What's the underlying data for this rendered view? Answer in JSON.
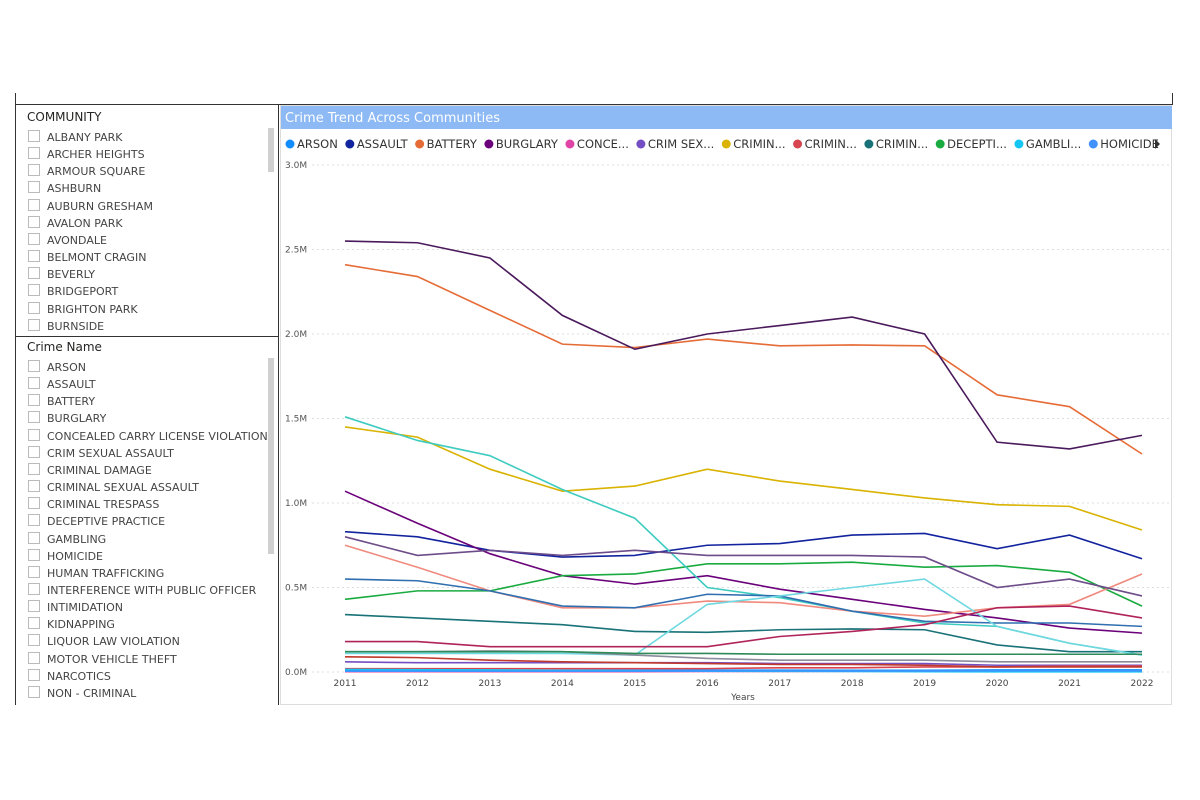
{
  "slicers": [
    {
      "title": "COMMUNITY",
      "items": [
        "ALBANY PARK",
        "ARCHER HEIGHTS",
        "ARMOUR SQUARE",
        "ASHBURN",
        "AUBURN GRESHAM",
        "AVALON PARK",
        "AVONDALE",
        "BELMONT CRAGIN",
        "BEVERLY",
        "BRIDGEPORT",
        "BRIGHTON PARK",
        "BURNSIDE"
      ]
    },
    {
      "title": "Crime Name",
      "items": [
        "ARSON",
        "ASSAULT",
        "BATTERY",
        "BURGLARY",
        "CONCEALED CARRY LICENSE VIOLATION",
        "CRIM SEXUAL ASSAULT",
        "CRIMINAL DAMAGE",
        "CRIMINAL SEXUAL ASSAULT",
        "CRIMINAL TRESPASS",
        "DECEPTIVE PRACTICE",
        "GAMBLING",
        "HOMICIDE",
        "HUMAN TRAFFICKING",
        "INTERFERENCE WITH PUBLIC OFFICER",
        "INTIMIDATION",
        "KIDNAPPING",
        "LIQUOR LAW VIOLATION",
        "MOTOR VEHICLE THEFT",
        "NARCOTICS",
        "NON - CRIMINAL"
      ]
    }
  ],
  "chart_data": {
    "type": "line",
    "title": "Crime Trend Across Communities",
    "xlabel": "Years",
    "x": [
      2011,
      2012,
      2013,
      2014,
      2015,
      2016,
      2017,
      2018,
      2019,
      2020,
      2021,
      2022
    ],
    "xlim": [
      2011,
      2022
    ],
    "xticks": [
      2011,
      2012,
      2013,
      2014,
      2015,
      2016,
      2017,
      2018,
      2019,
      2020,
      2021,
      2022
    ],
    "ylim": [
      0,
      3000000
    ],
    "yticks": [
      {
        "value": 0,
        "label": "0.0M"
      },
      {
        "value": 500000,
        "label": "0.5M"
      },
      {
        "value": 1000000,
        "label": "1.0M"
      },
      {
        "value": 1500000,
        "label": "1.5M"
      },
      {
        "value": 2000000,
        "label": "2.0M"
      },
      {
        "value": 2500000,
        "label": "2.5M"
      },
      {
        "value": 3000000,
        "label": "3.0M"
      }
    ],
    "grid": true,
    "series": [
      {
        "name": "ARSON",
        "color": "#118DFF",
        "values": [
          12000,
          12000,
          11000,
          10000,
          10000,
          11000,
          11000,
          10000,
          10000,
          12000,
          13000,
          12000
        ]
      },
      {
        "name": "ASSAULT",
        "color": "#12239E",
        "values": [
          830000,
          800000,
          720000,
          680000,
          690000,
          750000,
          760000,
          810000,
          820000,
          730000,
          810000,
          670000
        ]
      },
      {
        "name": "BATTERY",
        "color": "#E66C37",
        "values": [
          2410000,
          2340000,
          2140000,
          1940000,
          1920000,
          1970000,
          1930000,
          1935000,
          1930000,
          1640000,
          1570000,
          1290000
        ]
      },
      {
        "name": "BURGLARY",
        "color": "#6B007B",
        "values": [
          1070000,
          880000,
          700000,
          570000,
          520000,
          570000,
          490000,
          430000,
          370000,
          320000,
          260000,
          230000
        ]
      },
      {
        "name": "CONCE...",
        "color": "#E044A7",
        "values": [
          2000,
          2000,
          2000,
          2000,
          2000,
          3000,
          3000,
          4000,
          4000,
          5000,
          6000,
          6000
        ]
      },
      {
        "name": "CRIM SEX...",
        "color": "#744EC2",
        "values": [
          60000,
          55000,
          55000,
          55000,
          55000,
          55000,
          50000,
          50000,
          50000,
          40000,
          40000,
          40000
        ]
      },
      {
        "name": "CRIMIN...",
        "color": "#D9B300",
        "values": [
          1450000,
          1390000,
          1200000,
          1070000,
          1100000,
          1200000,
          1130000,
          1080000,
          1030000,
          990000,
          980000,
          840000
        ]
      },
      {
        "name": "CRIMIN...",
        "color": "#D64550",
        "values": [
          20000,
          20000,
          20000,
          20000,
          20000,
          20000,
          25000,
          25000,
          30000,
          30000,
          35000,
          35000
        ]
      },
      {
        "name": "CRIMIN...",
        "color": "#197278",
        "values": [
          340000,
          320000,
          300000,
          280000,
          240000,
          235000,
          250000,
          255000,
          250000,
          160000,
          120000,
          120000
        ]
      },
      {
        "name": "DECEPTI...",
        "color": "#1AAB40",
        "values": [
          430000,
          480000,
          480000,
          570000,
          580000,
          640000,
          640000,
          650000,
          620000,
          630000,
          590000,
          390000
        ]
      },
      {
        "name": "GAMBLI...",
        "color": "#15C6F4",
        "values": [
          15000,
          14000,
          12000,
          9000,
          7000,
          5000,
          4000,
          3000,
          2000,
          1000,
          1000,
          1000
        ]
      },
      {
        "name": "HOMICIDE",
        "color": "#4092FF",
        "values": [
          5000,
          5000,
          5000,
          5000,
          5000,
          6000,
          7000,
          6000,
          6000,
          8000,
          8000,
          7000
        ]
      },
      {
        "color": "#4A1A5C",
        "values": [
          2550000,
          2540000,
          2450000,
          2110000,
          1910000,
          2000000,
          2050000,
          2100000,
          2000000,
          1360000,
          1320000,
          1400000
        ]
      },
      {
        "color": "#3ECBC0",
        "values": [
          1510000,
          1370000,
          1280000,
          1080000,
          910000,
          500000,
          440000,
          360000,
          290000,
          270000,
          170000,
          100000
        ]
      },
      {
        "color": "#F08A7E",
        "values": [
          750000,
          620000,
          480000,
          380000,
          380000,
          420000,
          410000,
          360000,
          330000,
          380000,
          400000,
          580000
        ]
      },
      {
        "color": "#2F6FB0",
        "values": [
          550000,
          540000,
          480000,
          390000,
          380000,
          460000,
          450000,
          360000,
          300000,
          290000,
          290000,
          270000
        ]
      },
      {
        "color": "#6D4C8A",
        "values": [
          800000,
          690000,
          720000,
          690000,
          720000,
          690000,
          690000,
          690000,
          680000,
          500000,
          550000,
          450000
        ]
      },
      {
        "color": "#70D8E0",
        "values": [
          110000,
          110000,
          110000,
          110000,
          100000,
          400000,
          450000,
          500000,
          550000,
          270000,
          170000,
          100000
        ]
      },
      {
        "color": "#B0245A",
        "values": [
          180000,
          180000,
          150000,
          150000,
          150000,
          150000,
          210000,
          240000,
          280000,
          380000,
          390000,
          320000
        ]
      },
      {
        "color": "#8C8C9C",
        "values": [
          120000,
          120000,
          125000,
          120000,
          100000,
          80000,
          70000,
          70000,
          70000,
          60000,
          60000,
          60000
        ]
      },
      {
        "color": "#2E8B57",
        "values": [
          120000,
          120000,
          120000,
          120000,
          110000,
          110000,
          105000,
          105000,
          105000,
          105000,
          105000,
          105000
        ]
      },
      {
        "color": "#C0392B",
        "values": [
          90000,
          85000,
          70000,
          60000,
          55000,
          50000,
          45000,
          45000,
          40000,
          30000,
          30000,
          30000
        ]
      }
    ]
  }
}
